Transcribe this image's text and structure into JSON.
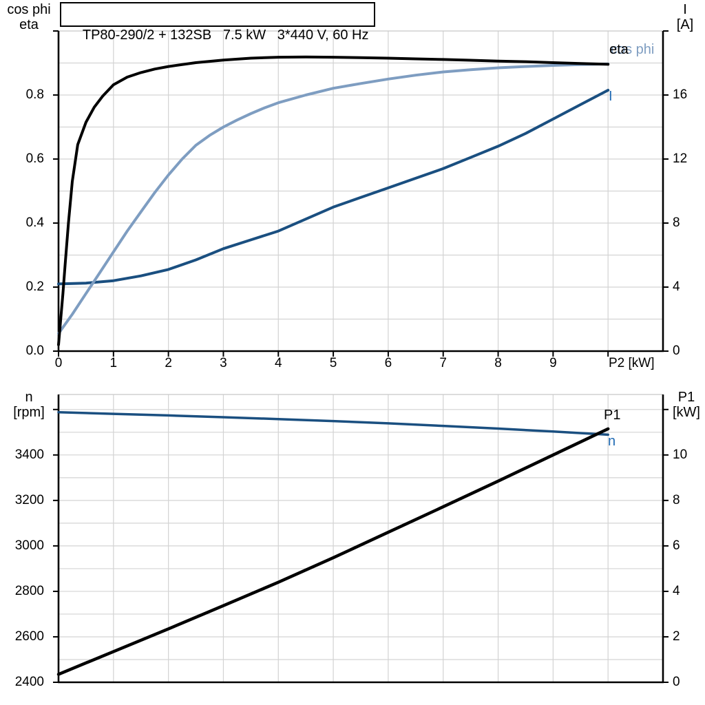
{
  "title": "TP80-290/2 + 132SB   7.5 kW   3*440 V, 60 Hz",
  "colors": {
    "black": "#000000",
    "eta": "#7e9dc1",
    "dark_blue": "#1a4f80",
    "blue_label": "#1f6ab4",
    "grid": "#d3d3d3",
    "frame_top": "#c8c8c8"
  },
  "chart_data": [
    {
      "type": "line",
      "title": "TP80-290/2 + 132SB   7.5 kW   3*440 V, 60 Hz",
      "grid": true,
      "x_axis": {
        "label": "P2 [kW]",
        "min": 0,
        "max": 11,
        "grid_step": 1,
        "ticks_to": 10,
        "tick_labels": [
          "0",
          "1",
          "2",
          "3",
          "4",
          "5",
          "6",
          "7",
          "8",
          "9"
        ]
      },
      "y_left": {
        "label": "cos phi / eta",
        "label_lines": [
          "cos phi",
          "eta"
        ],
        "min": 0,
        "max": 1.0,
        "major_step": 0.2,
        "minor_step": 0.1,
        "tick_labels": [
          "0.0",
          "0.2",
          "0.4",
          "0.6",
          "0.8"
        ]
      },
      "y_right": {
        "label": "I [A]",
        "label_lines": [
          "I",
          "[A]"
        ],
        "min": 0,
        "max": 20,
        "major_step": 4,
        "minor_step": 2,
        "tick_labels": [
          "0",
          "4",
          "8",
          "12",
          "16"
        ]
      },
      "series": [
        {
          "name": "I",
          "axis": "right",
          "color": "#1a4f80",
          "stroke_width": 4,
          "x": [
            0,
            0.5,
            1,
            1.5,
            2,
            2.5,
            3,
            3.5,
            4,
            4.5,
            5,
            5.5,
            6,
            6.5,
            7,
            7.5,
            8,
            8.5,
            9,
            9.5,
            10
          ],
          "y": [
            4.2,
            4.25,
            4.4,
            4.7,
            5.1,
            5.7,
            6.4,
            6.95,
            7.5,
            8.25,
            9.0,
            9.6,
            10.2,
            10.8,
            11.4,
            12.1,
            12.8,
            13.6,
            14.5,
            15.4,
            16.3
          ]
        },
        {
          "name": "eta",
          "axis": "left",
          "color": "#7e9dc1",
          "stroke_width": 4,
          "x": [
            0,
            0.25,
            0.5,
            0.75,
            1.0,
            1.25,
            1.5,
            1.75,
            2.0,
            2.25,
            2.5,
            2.75,
            3.0,
            3.25,
            3.5,
            3.75,
            4.0,
            4.5,
            5.0,
            5.5,
            6.0,
            6.5,
            7.0,
            7.5,
            8.0,
            8.5,
            9.0,
            9.5,
            10.0
          ],
          "y": [
            0.055,
            0.115,
            0.18,
            0.245,
            0.31,
            0.375,
            0.435,
            0.495,
            0.55,
            0.6,
            0.643,
            0.674,
            0.7,
            0.722,
            0.742,
            0.76,
            0.776,
            0.8,
            0.821,
            0.836,
            0.85,
            0.862,
            0.872,
            0.879,
            0.885,
            0.889,
            0.8925,
            0.895,
            0.897
          ]
        },
        {
          "name": "cos phi",
          "axis": "left",
          "color": "#000000",
          "stroke_width": 4,
          "x": [
            0,
            0.04,
            0.08,
            0.12,
            0.18,
            0.25,
            0.35,
            0.5,
            0.65,
            0.8,
            1.0,
            1.25,
            1.5,
            1.75,
            2.0,
            2.5,
            3.0,
            3.5,
            4.0,
            4.5,
            5.0,
            5.5,
            6.0,
            6.5,
            7.0,
            7.5,
            8.0,
            8.5,
            9.0,
            9.5,
            10.0
          ],
          "y": [
            0.02,
            0.1,
            0.18,
            0.27,
            0.4,
            0.53,
            0.645,
            0.715,
            0.762,
            0.796,
            0.832,
            0.856,
            0.87,
            0.881,
            0.889,
            0.901,
            0.909,
            0.915,
            0.918,
            0.919,
            0.918,
            0.9165,
            0.915,
            0.913,
            0.911,
            0.9085,
            0.906,
            0.904,
            0.901,
            0.8985,
            0.896
          ]
        }
      ],
      "curve_labels": [
        {
          "text": "cos phi",
          "color": "#7e9dc1",
          "left": 887,
          "top": 61
        },
        {
          "text": "eta",
          "color": "#000000",
          "left": 885,
          "top": 61
        },
        {
          "text": "I",
          "color": "#1f6ab4",
          "left": 884,
          "top": 129
        }
      ]
    },
    {
      "type": "line",
      "title": "",
      "grid": true,
      "x_axis": {
        "label": "",
        "min": 0,
        "max": 11,
        "grid_step": 1,
        "ticks_to": -1,
        "tick_labels": []
      },
      "y_left": {
        "label": "n [rpm]",
        "label_lines": [
          "n",
          "[rpm]"
        ],
        "min": 2400,
        "max": 3666,
        "major_step": 200,
        "minor_step": 100,
        "tick_labels": [
          "2400",
          "2600",
          "2800",
          "3000",
          "3200",
          "3400"
        ]
      },
      "y_right": {
        "label": "P1 [kW]",
        "label_lines": [
          "P1",
          "[kW]"
        ],
        "min": 0,
        "max": 12.66,
        "major_step": 2,
        "minor_step": 1,
        "tick_labels": [
          "0",
          "2",
          "4",
          "6",
          "8",
          "10"
        ]
      },
      "series": [
        {
          "name": "n",
          "axis": "left",
          "color": "#1a4f80",
          "stroke_width": 3.5,
          "x": [
            0,
            1,
            2,
            3,
            4,
            5,
            6,
            7,
            8,
            9,
            10
          ],
          "y": [
            3588,
            3581,
            3574,
            3566,
            3558,
            3549,
            3539,
            3528,
            3516,
            3503,
            3489
          ]
        },
        {
          "name": "P1",
          "axis": "right",
          "color": "#000000",
          "stroke_width": 4.5,
          "x": [
            0,
            1,
            2,
            3,
            4,
            5,
            6,
            7,
            8,
            9,
            10
          ],
          "y": [
            0.35,
            1.35,
            2.35,
            3.37,
            4.4,
            5.48,
            6.6,
            7.72,
            8.85,
            10.0,
            11.15
          ]
        }
      ],
      "curve_labels": [
        {
          "text": "P1",
          "color": "#000000",
          "left": 877,
          "top": 592
        },
        {
          "text": "n",
          "color": "#1f6ab4",
          "left": 883,
          "top": 630
        }
      ]
    }
  ]
}
